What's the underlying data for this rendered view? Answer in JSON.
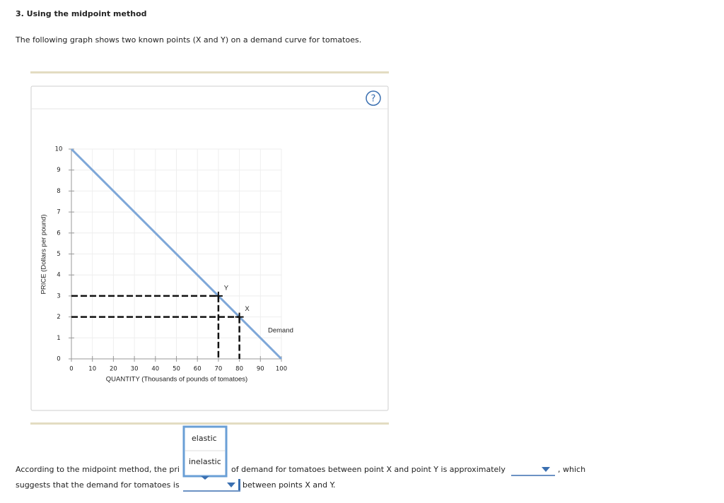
{
  "header": {
    "title": "3. Using the midpoint method"
  },
  "intro": "The following graph shows two known points (X and Y) on a demand curve for tomatoes.",
  "help_icon": "?",
  "chart_data": {
    "type": "line",
    "x_label": "QUANTITY (Thousands of pounds of tomatoes)",
    "y_label": "PRICE (Dollars per pound)",
    "x": [
      0,
      100
    ],
    "series": [
      {
        "name": "Demand",
        "color": "#7ea7d8",
        "values": [
          10,
          0
        ]
      }
    ],
    "points": [
      {
        "label": "Y",
        "x": 70,
        "y": 3
      },
      {
        "label": "X",
        "x": 80,
        "y": 2
      }
    ],
    "xlim": [
      0,
      100
    ],
    "ylim": [
      0,
      10
    ],
    "xticks": [
      0,
      10,
      20,
      30,
      40,
      50,
      60,
      70,
      80,
      90,
      100
    ],
    "yticks": [
      0,
      1,
      2,
      3,
      4,
      5,
      6,
      7,
      8,
      9,
      10
    ],
    "grid": true
  },
  "question": {
    "line1_a": "According to the midpoint method, the pri",
    "line1_b": "of demand for tomatoes between point X and point Y is approximately",
    "line1_c": ", which",
    "line2_a": "suggests that the demand for tomatoes is",
    "line2_b": "between points X and Y.",
    "dropdown_options": [
      "elastic",
      "inelastic"
    ]
  }
}
